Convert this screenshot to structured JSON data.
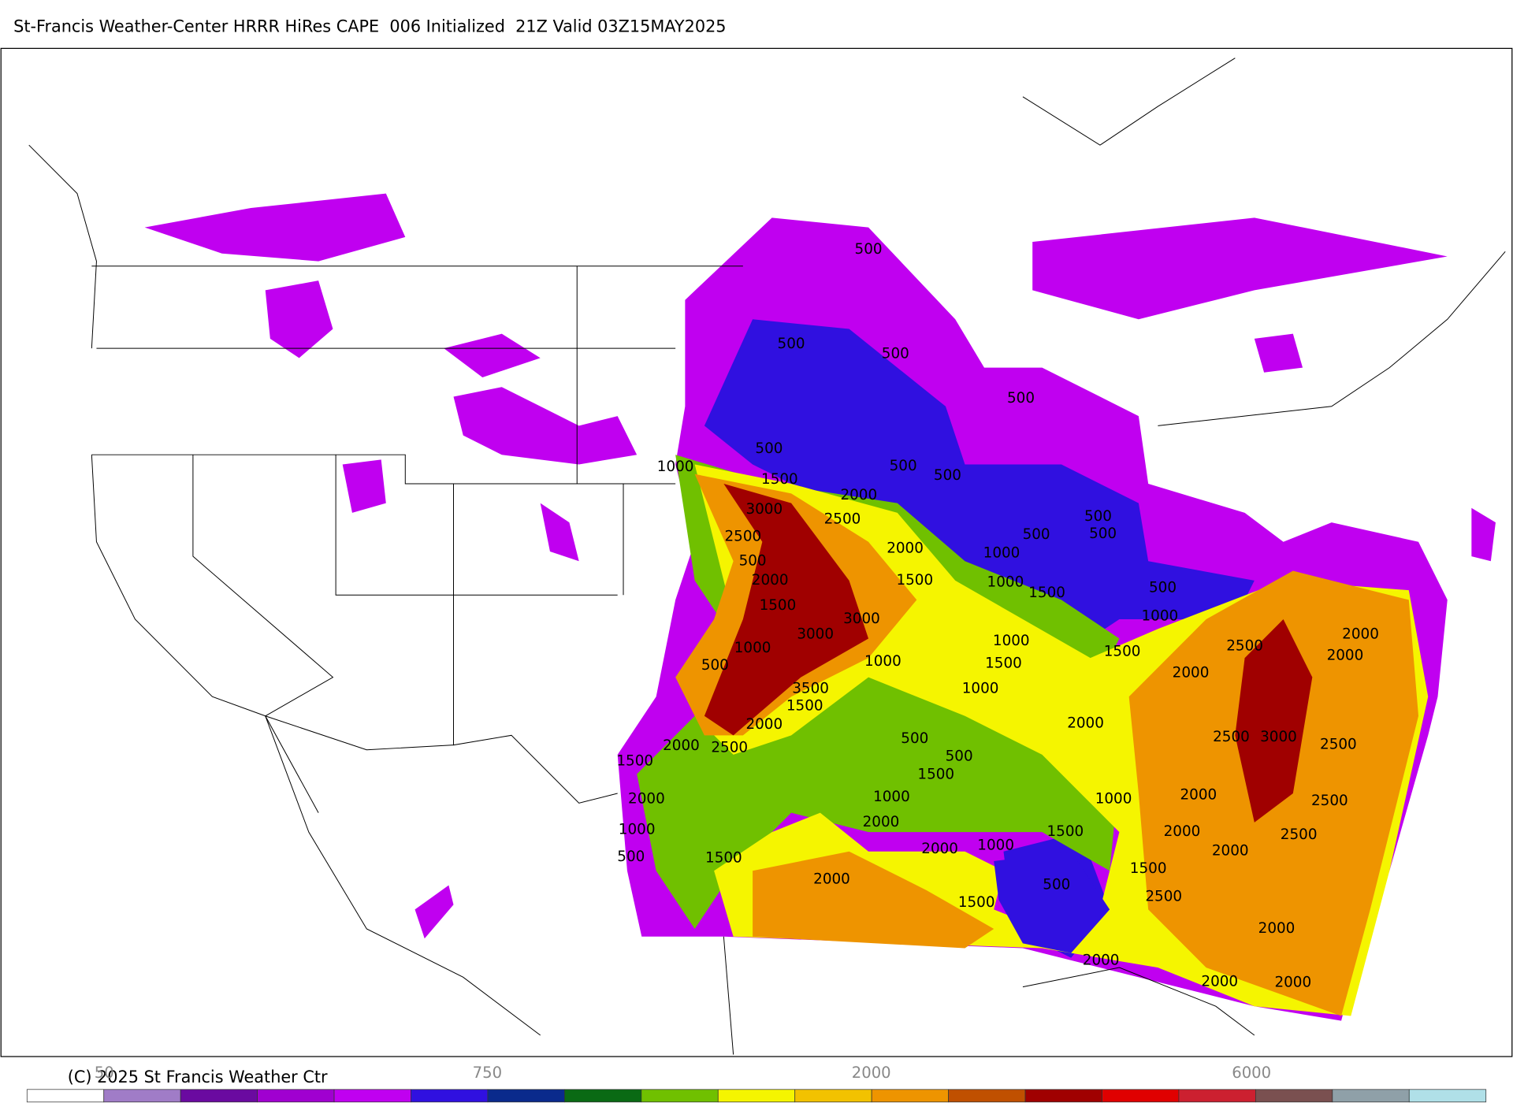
{
  "header": {
    "title": "St-Francis Weather-Center HRRR HiRes CAPE  006 Initialized  21Z Valid 03Z15MAY2025"
  },
  "map": {
    "contour_labels": [
      "500",
      "500",
      "500",
      "500",
      "500",
      "1000",
      "1500",
      "500",
      "500",
      "2000",
      "3000",
      "2500",
      "500",
      "500",
      "500",
      "2500",
      "500",
      "2000",
      "1000",
      "1500",
      "1000",
      "1500",
      "2000",
      "500",
      "1500",
      "3000",
      "1000",
      "3000",
      "1000",
      "2500",
      "1500",
      "2000",
      "2000",
      "1000",
      "500",
      "1000",
      "1500",
      "2000",
      "3500",
      "1000",
      "1500",
      "2000",
      "2000",
      "2000",
      "2500",
      "500",
      "2500",
      "3000",
      "2500",
      "1500",
      "500",
      "1500",
      "2000",
      "1000",
      "2000",
      "1000",
      "2500",
      "1000",
      "2000",
      "1500",
      "2000",
      "2500",
      "500",
      "1500",
      "2000",
      "1000",
      "2000",
      "1500",
      "2000",
      "500",
      "2500",
      "1500",
      "2000",
      "2000",
      "2000",
      "2000"
    ]
  },
  "colorbar": {
    "colors": [
      "#ffffff",
      "#a07cc7",
      "#6a0aa0",
      "#a000d0",
      "#c000f0",
      "#3010e0",
      "#0a2a8c",
      "#0a6a14",
      "#70c000",
      "#f5f500",
      "#f2c200",
      "#ee9400",
      "#c05000",
      "#a00000",
      "#e00000",
      "#cc2030",
      "#7a5050",
      "#8fa0a8",
      "#b0e0e8"
    ],
    "labels": [
      "50",
      "750",
      "2000",
      "6000"
    ]
  },
  "footer": {
    "copyright": "(C) 2025 St Francis Weather Ctr"
  }
}
